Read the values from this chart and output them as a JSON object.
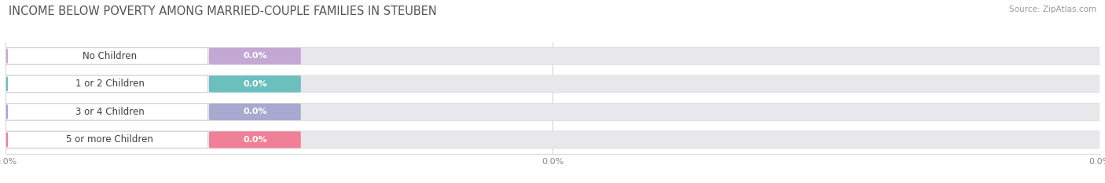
{
  "title": "INCOME BELOW POVERTY AMONG MARRIED-COUPLE FAMILIES IN STEUBEN",
  "source": "Source: ZipAtlas.com",
  "categories": [
    "No Children",
    "1 or 2 Children",
    "3 or 4 Children",
    "5 or more Children"
  ],
  "values": [
    0.0,
    0.0,
    0.0,
    0.0
  ],
  "bar_colors": [
    "#c4a8d4",
    "#6bbfbc",
    "#a8a8d0",
    "#f08098"
  ],
  "background_color": "#ffffff",
  "track_color": "#e8e8ec",
  "track_edge_color": "#d8d8e0",
  "title_fontsize": 10.5,
  "figsize": [
    14.06,
    2.33
  ],
  "dpi": 100
}
